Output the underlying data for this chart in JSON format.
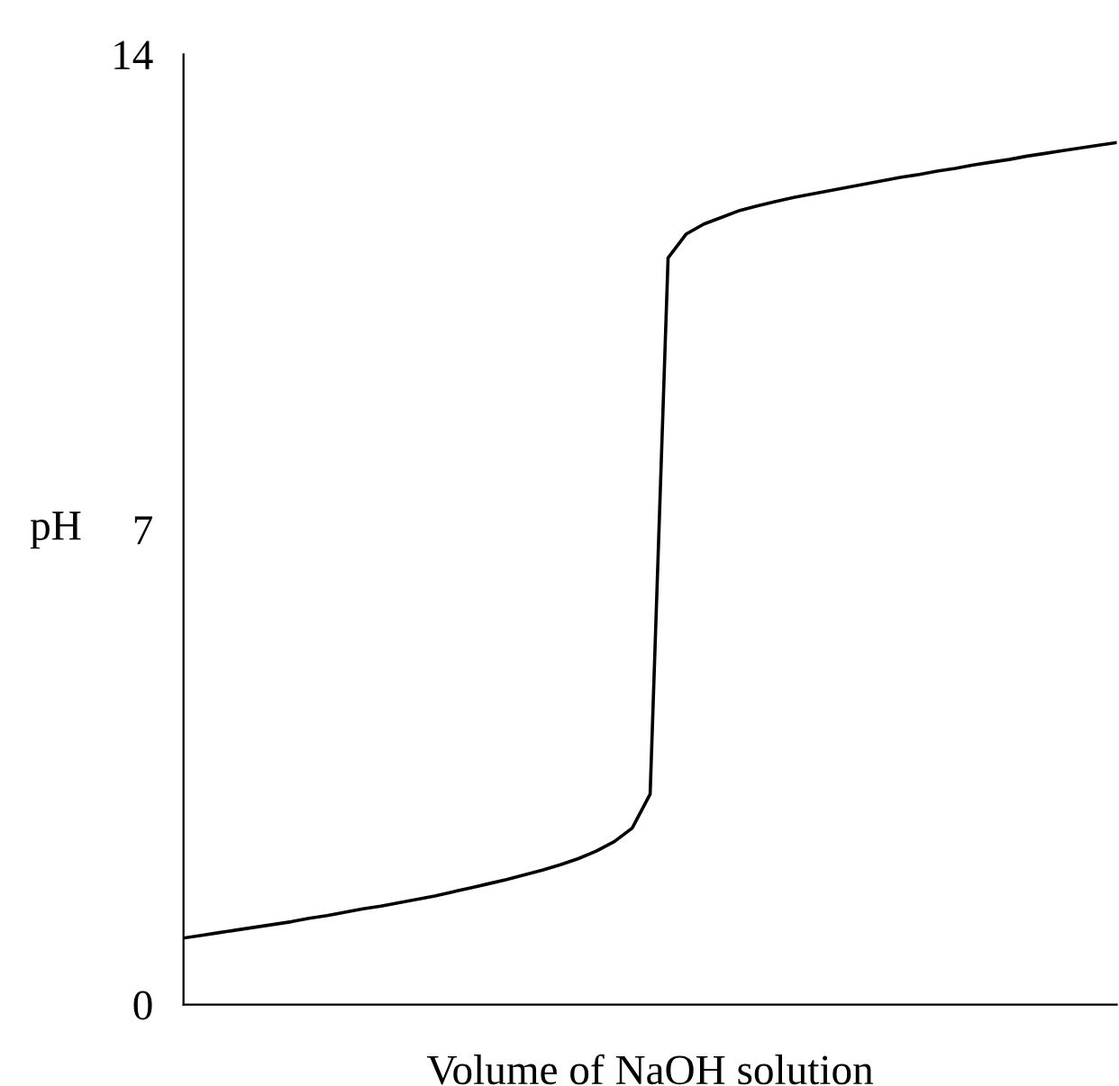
{
  "chart_data": {
    "type": "line",
    "xlabel": "Volume of NaOH solution",
    "ylabel": "pH",
    "categories": [
      null,
      null,
      null,
      null,
      null,
      null,
      null,
      null,
      null,
      null,
      null,
      null,
      null,
      null,
      null,
      null,
      null,
      null,
      null,
      null,
      null,
      null,
      null,
      null,
      null,
      null,
      null,
      null,
      null,
      null,
      null,
      null,
      null,
      null,
      null,
      null,
      null,
      null,
      null,
      null,
      null,
      null,
      null,
      null,
      null,
      null,
      null,
      null,
      null,
      null,
      null,
      null,
      null
    ],
    "series": [
      {
        "color": "#000000",
        "values": [
          0.98,
          1.02,
          1.06,
          1.1,
          1.14,
          1.18,
          1.22,
          1.27,
          1.31,
          1.36,
          1.41,
          1.45,
          1.5,
          1.55,
          1.6,
          1.66,
          1.72,
          1.78,
          1.84,
          1.91,
          1.98,
          2.06,
          2.15,
          2.26,
          2.4,
          2.6,
          3.1,
          11.0,
          11.35,
          11.5,
          11.6,
          11.7,
          11.77,
          11.83,
          11.89,
          11.94,
          11.99,
          12.04,
          12.09,
          12.14,
          12.19,
          12.23,
          12.28,
          12.32,
          12.37,
          12.41,
          12.45,
          12.5,
          12.54,
          12.58,
          12.62,
          12.66,
          12.7
        ]
      }
    ],
    "ylim": [
      0,
      14
    ],
    "yticks": [
      0,
      7,
      14
    ],
    "tick_labels": "y",
    "grid": false,
    "legend": false,
    "marker": "none",
    "line_style": "solid"
  }
}
